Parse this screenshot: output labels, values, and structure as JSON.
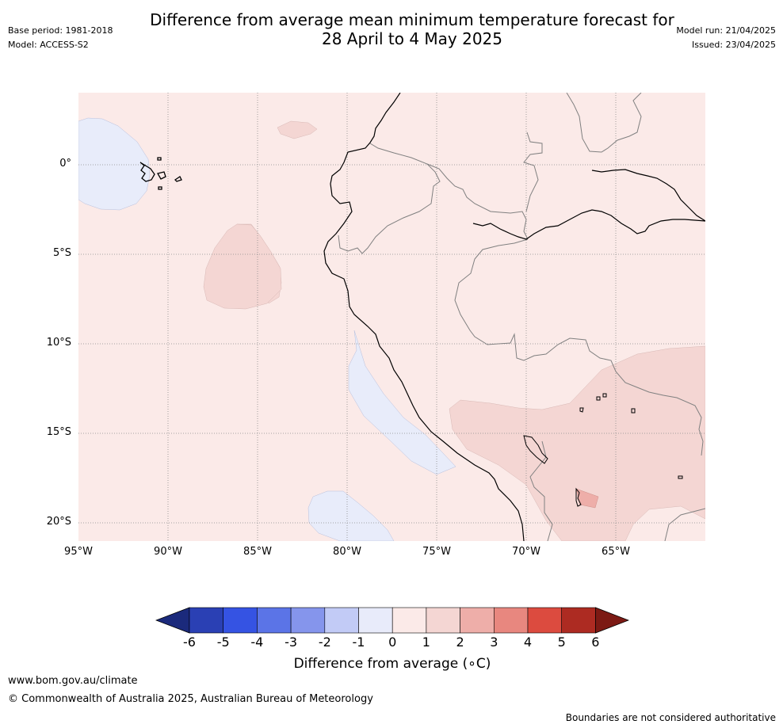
{
  "title_line1": "Difference from average mean minimum temperature forecast for",
  "title_line2": "28 April to 4 May 2025",
  "meta": {
    "base_period": "Base period: 1981-2018",
    "model": "Model: ACCESS-S2",
    "model_run": "Model run: 21/04/2025",
    "issued": "Issued: 23/04/2025"
  },
  "map": {
    "region": "Western South America",
    "lat_labels": [
      "0°",
      "5°S",
      "10°S",
      "15°S",
      "20°S"
    ],
    "lon_labels": [
      "95°W",
      "90°W",
      "85°W",
      "80°W",
      "75°W",
      "70°W",
      "65°W"
    ],
    "background_category": "0 to 1",
    "colors": {
      "c0to1": "#fbeae8",
      "c1to2": "#f4d6d3",
      "c2to3": "#eeaea9",
      "cm1to0": "#e8ecfa",
      "coast": "#000000",
      "border": "#808080",
      "grid": "#8a8a8a"
    }
  },
  "colorbar": {
    "ticks": [
      "-6",
      "-5",
      "-4",
      "-3",
      "-2",
      "-1",
      "0",
      "1",
      "2",
      "3",
      "4",
      "5",
      "6"
    ],
    "colors": [
      "#1b2a7c",
      "#2a40b4",
      "#3553e3",
      "#5b74e7",
      "#8595ec",
      "#c2cbf6",
      "#e8ebfa",
      "#fbeae8",
      "#f4d6d3",
      "#eeaea9",
      "#e8877f",
      "#dc4b3f",
      "#ad2b22",
      "#7c1a14"
    ],
    "label": "Difference from average (∘C)"
  },
  "footer": {
    "url": "www.bom.gov.au/climate",
    "copyright": "© Commonwealth of Australia 2025, Australian Bureau of Meteorology",
    "disclaimer": "Boundaries are not considered authoritative"
  }
}
